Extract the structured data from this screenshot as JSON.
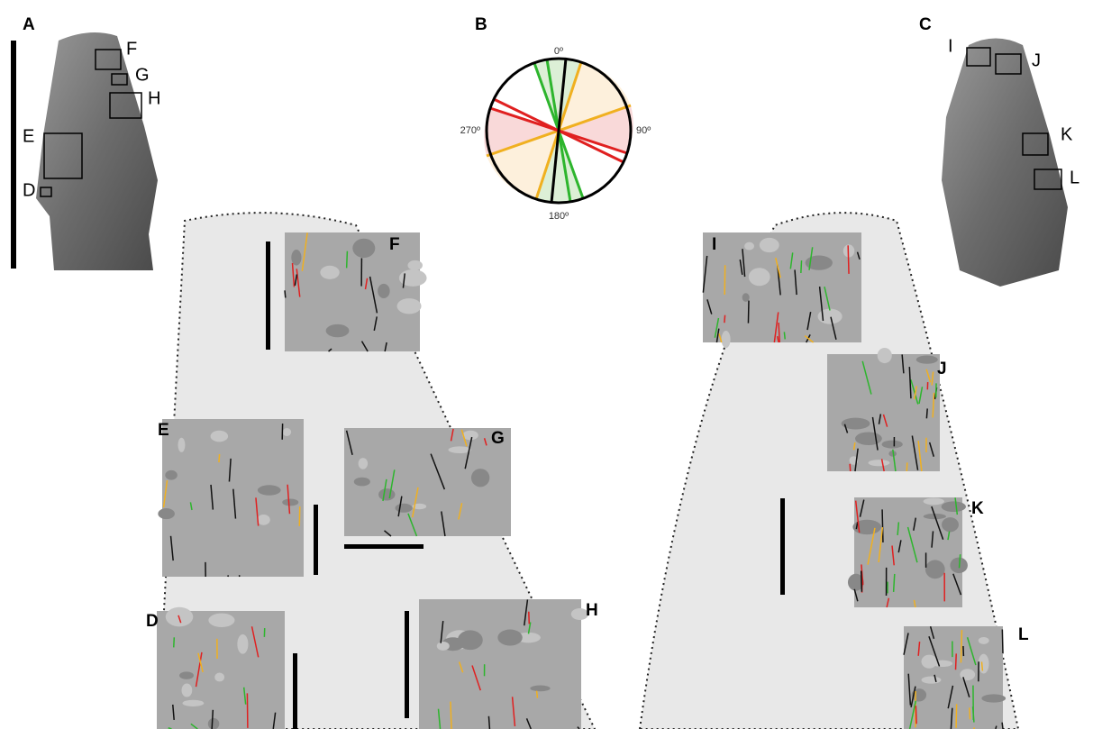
{
  "panels": [
    {
      "label": "A",
      "boxes": [
        "F",
        "G",
        "H",
        "E",
        "D"
      ]
    },
    {
      "label": "B",
      "axis_labels": [
        "0º",
        "90º",
        "180º",
        "270º"
      ]
    },
    {
      "label": "C",
      "boxes": [
        "I",
        "J",
        "K",
        "L"
      ]
    }
  ],
  "images": [
    "D",
    "E",
    "F",
    "G",
    "H",
    "I",
    "J",
    "K",
    "L"
  ]
}
